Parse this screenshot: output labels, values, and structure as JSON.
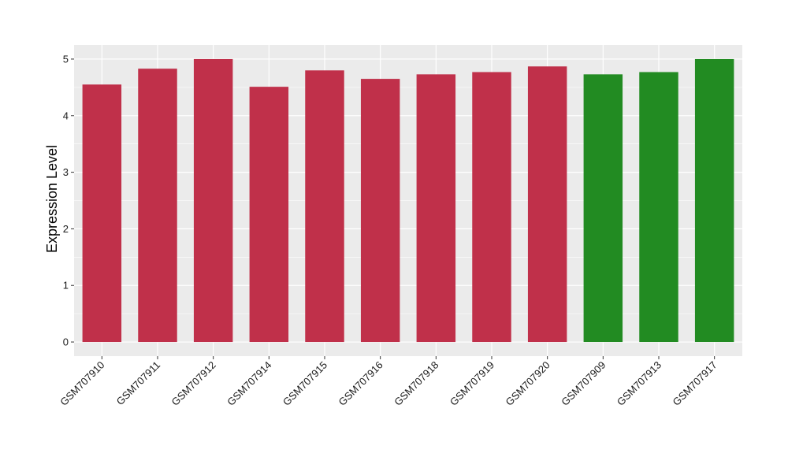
{
  "chart_data": {
    "type": "bar",
    "title": "",
    "xlabel": "",
    "ylabel": "Expression Level",
    "ylim": [
      -0.25,
      5.25
    ],
    "yticks": [
      0,
      1,
      2,
      3,
      4,
      5
    ],
    "grid": true,
    "legend": "none",
    "categories": [
      "GSM707910",
      "GSM707911",
      "GSM707912",
      "GSM707914",
      "GSM707915",
      "GSM707916",
      "GSM707918",
      "GSM707919",
      "GSM707920",
      "GSM707909",
      "GSM707913",
      "GSM707917"
    ],
    "values": [
      4.55,
      4.83,
      5.0,
      4.51,
      4.8,
      4.65,
      4.73,
      4.77,
      4.87,
      4.73,
      4.77,
      5.0
    ],
    "bar_colors": [
      "#C0304A",
      "#C0304A",
      "#C0304A",
      "#C0304A",
      "#C0304A",
      "#C0304A",
      "#C0304A",
      "#C0304A",
      "#C0304A",
      "#228B22",
      "#228B22",
      "#228B22"
    ],
    "panel_background": "#EBEBEB",
    "grid_color": "#FFFFFF"
  }
}
